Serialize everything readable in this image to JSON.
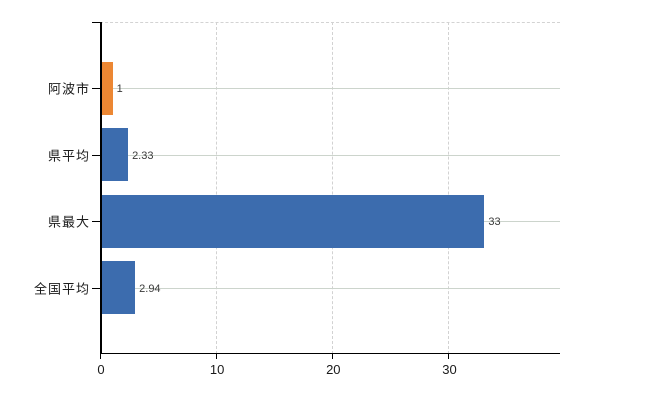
{
  "chart_data": {
    "type": "bar",
    "orientation": "horizontal",
    "title": "",
    "categories": [
      "阿波市",
      "県平均",
      "県最大",
      "全国平均"
    ],
    "values": [
      1,
      2.33,
      33,
      2.94
    ],
    "value_labels": [
      "1",
      "2.33",
      "33",
      "2.94"
    ],
    "bar_colors": [
      "#EC8733",
      "#3C6CAE",
      "#3C6CAE",
      "#3C6CAE"
    ],
    "x_axis": {
      "min": 0,
      "max": 39.6,
      "ticks": [
        0,
        10,
        20,
        30
      ],
      "tick_labels": [
        "0",
        "10",
        "20",
        "30"
      ]
    },
    "grid": {
      "horizontal": "solid",
      "vertical": "dashed",
      "top_border": "dashed"
    },
    "legend": "none"
  },
  "colors": {
    "background": "#ffffff",
    "bar_orange": "#EC8733",
    "bar_blue": "#3C6CAE",
    "h_gridline": "#ccd4cc",
    "v_gridline": "#d2d2d2",
    "axis": "#000000",
    "category_text": "#1a1a1a",
    "tick_text": "#1a1a1a",
    "value_text": "#3a3a3a"
  }
}
